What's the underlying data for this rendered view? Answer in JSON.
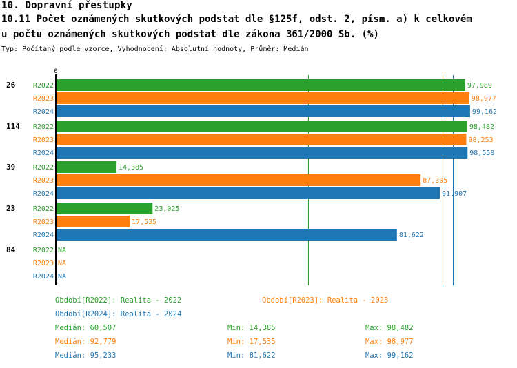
{
  "header": {
    "section_title": "10. Dopravní přestupky",
    "chart_title_line1": "10.11 Počet oznámených skutkových podstat dle §125f, odst. 2, písm. a) k celkovém",
    "chart_title_line2": "u počtu oznámených skutkových podstat dle zákona 361/2000 Sb. (%)",
    "subtitle": "Typ: Počítaný podle vzorce, Vyhodnocení: Absolutní hodnoty, Průměr: Medián"
  },
  "colors": {
    "R2022": "#2ca02c",
    "R2023": "#ff7f0e",
    "R2024": "#1f77b4"
  },
  "chart_data": {
    "type": "bar",
    "orientation": "horizontal",
    "title": "10.11 Počet oznámených skutkových podstat dle §125f, odst. 2, písm. a) k celkovému počtu oznámených skutkových podstat dle zákona 361/2000 Sb. (%)",
    "xlabel": "",
    "ylabel": "",
    "axis_tick_label": "0",
    "xlim": [
      0,
      100
    ],
    "categories": [
      "26",
      "114",
      "39",
      "23",
      "84"
    ],
    "series": [
      {
        "name": "R2022",
        "values": [
          97.989,
          98.482,
          14.385,
          23.025,
          null
        ],
        "labels": [
          "97,989",
          "98,482",
          "14,385",
          "23,025",
          "NA"
        ]
      },
      {
        "name": "R2023",
        "values": [
          98.977,
          98.253,
          87.305,
          17.535,
          null
        ],
        "labels": [
          "98,977",
          "98,253",
          "87,305",
          "17,535",
          "NA"
        ]
      },
      {
        "name": "R2024",
        "values": [
          99.162,
          98.558,
          91.907,
          81.622,
          null
        ],
        "labels": [
          "99,162",
          "98,558",
          "91,907",
          "81,622",
          "NA"
        ]
      }
    ],
    "median_lines": [
      {
        "series": "R2022",
        "value": 60.507
      },
      {
        "series": "R2023",
        "value": 92.779
      },
      {
        "series": "R2024",
        "value": 95.233
      }
    ],
    "legend": [
      {
        "series": "R2022",
        "label": "Období[R2022]: Realita - 2022"
      },
      {
        "series": "R2023",
        "label": "Období[R2023]: Realita - 2023"
      },
      {
        "series": "R2024",
        "label": "Období[R2024]: Realita - 2024"
      }
    ],
    "stats": [
      {
        "series": "R2022",
        "median": "Medián: 60,507",
        "min": "Min: 14,385",
        "max": "Max: 98,482"
      },
      {
        "series": "R2023",
        "median": "Medián: 92,779",
        "min": "Min: 17,535",
        "max": "Max: 98,977"
      },
      {
        "series": "R2024",
        "median": "Medián: 95,233",
        "min": "Min: 81,622",
        "max": "Max: 99,162"
      }
    ]
  }
}
